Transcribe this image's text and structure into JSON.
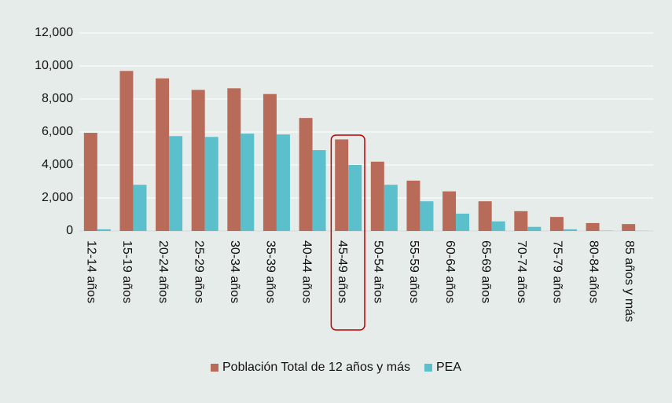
{
  "chart_data": {
    "type": "bar",
    "categories": [
      "12-14 años",
      "15-19 años",
      "20-24 años",
      "25-29 años",
      "30-34 años",
      "35-39 años",
      "40-44 años",
      "45-49 años",
      "50-54 años",
      "55-59 años",
      "60-64 años",
      "65-69 años",
      "70-74 años",
      "75-79 años",
      "80-84 años",
      "85 años y más"
    ],
    "series": [
      {
        "name": "Población Total de 12 años y más",
        "color": "#b96b5a",
        "values": [
          5950,
          9700,
          9250,
          8550,
          8650,
          8300,
          6850,
          5550,
          4200,
          3050,
          2400,
          1800,
          1200,
          850,
          480,
          420
        ]
      },
      {
        "name": "PEA",
        "color": "#5cc0cc",
        "values": [
          100,
          2800,
          5750,
          5700,
          5900,
          5850,
          4900,
          4000,
          2800,
          1800,
          1050,
          580,
          250,
          100,
          20,
          10
        ]
      }
    ],
    "ylim": [
      0,
      12000
    ],
    "yticks": [
      0,
      {
        "value": 2000,
        "label": "2,000"
      },
      {
        "value": 4000,
        "label": "4,000"
      },
      {
        "value": 6000,
        "label": "6,000"
      },
      {
        "value": 8000,
        "label": "8,000"
      },
      {
        "value": 10000,
        "label": "10,000"
      },
      {
        "value": 12000,
        "label": "12,000"
      }
    ],
    "grid": true,
    "legend": "bottom"
  }
}
